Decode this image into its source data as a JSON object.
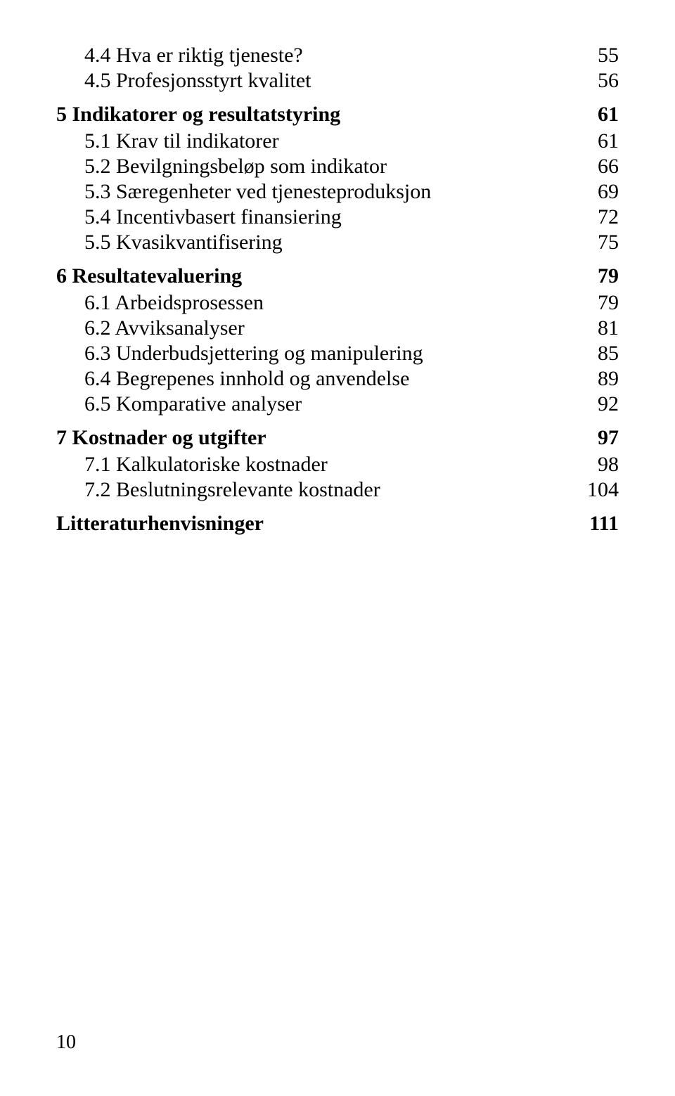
{
  "colors": {
    "background": "#ffffff",
    "text": "#000000",
    "leader": "#000000"
  },
  "typography": {
    "font_family": "Times New Roman",
    "base_fontsize_pt": 30,
    "bold_weight": 700,
    "normal_weight": 400
  },
  "toc": {
    "entries": [
      {
        "level": 2,
        "label": "4.4 Hva er riktig tjeneste?",
        "page": "55"
      },
      {
        "level": 2,
        "label": "4.5 Profesjonsstyrt kvalitet",
        "page": "56"
      },
      {
        "level": 1,
        "label": "5 Indikatorer og resultatstyring",
        "page": "61"
      },
      {
        "level": 2,
        "label": "5.1 Krav til indikatorer",
        "page": "61"
      },
      {
        "level": 2,
        "label": "5.2 Bevilgningsbeløp som indikator",
        "page": "66"
      },
      {
        "level": 2,
        "label": "5.3 Særegenheter ved tjenesteproduksjon",
        "page": "69"
      },
      {
        "level": 2,
        "label": "5.4 Incentivbasert finansiering",
        "page": "72"
      },
      {
        "level": 2,
        "label": "5.5 Kvasikvantifisering",
        "page": "75"
      },
      {
        "level": 1,
        "label": "6 Resultatevaluering",
        "page": "79"
      },
      {
        "level": 2,
        "label": "6.1 Arbeidsprosessen",
        "page": "79"
      },
      {
        "level": 2,
        "label": "6.2 Avviksanalyser",
        "page": "81"
      },
      {
        "level": 2,
        "label": "6.3 Underbudsjettering og manipulering",
        "page": "85"
      },
      {
        "level": 2,
        "label": "6.4 Begrepenes innhold og anvendelse",
        "page": "89"
      },
      {
        "level": 2,
        "label": "6.5 Komparative analyser",
        "page": "92"
      },
      {
        "level": 1,
        "label": "7 Kostnader og utgifter",
        "page": "97"
      },
      {
        "level": 2,
        "label": "7.1 Kalkulatoriske kostnader",
        "page": "98"
      },
      {
        "level": 2,
        "label": "7.2 Beslutningsrelevante kostnader",
        "page": "104"
      },
      {
        "level": 1,
        "label": "Litteraturhenvisninger",
        "page": "111"
      }
    ]
  },
  "footer": {
    "page_number": "10"
  }
}
